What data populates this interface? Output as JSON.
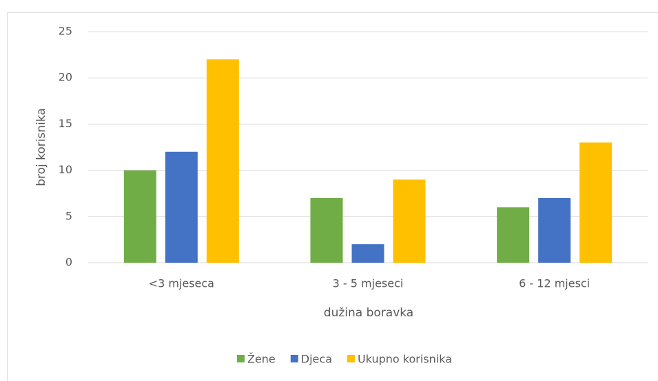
{
  "chart_data": {
    "type": "bar",
    "categories": [
      "<3 mjeseca",
      "3 - 5 mjeseci",
      "6 - 12 mjesci"
    ],
    "series": [
      {
        "name": "Žene",
        "color": "#70ad47",
        "values": [
          10,
          7,
          6
        ]
      },
      {
        "name": "Djeca",
        "color": "#4472c4",
        "values": [
          12,
          2,
          7
        ]
      },
      {
        "name": "Ukupno korisnika",
        "color": "#ffc000",
        "values": [
          22,
          9,
          13
        ]
      }
    ],
    "xlabel": "dužina boravka",
    "ylabel": "broj korisnika",
    "ylim": [
      0,
      25
    ],
    "yticks": [
      0,
      5,
      10,
      15,
      20,
      25
    ],
    "grid": true,
    "legend": "bottom"
  }
}
